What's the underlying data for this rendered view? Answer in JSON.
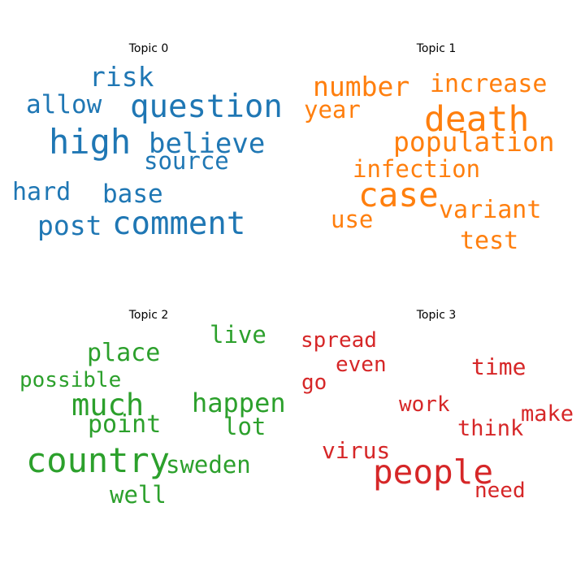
{
  "chart_data": [
    {
      "type": "wordcloud",
      "title": "Topic 0",
      "color": "#1f77b4",
      "words": [
        {
          "text": "high",
          "weight": 1.0
        },
        {
          "text": "question",
          "weight": 0.93
        },
        {
          "text": "comment",
          "weight": 0.93
        },
        {
          "text": "believe",
          "weight": 0.81
        },
        {
          "text": "risk",
          "weight": 0.8
        },
        {
          "text": "post",
          "weight": 0.8
        },
        {
          "text": "base",
          "weight": 0.74
        },
        {
          "text": "allow",
          "weight": 0.74
        },
        {
          "text": "hard",
          "weight": 0.72
        },
        {
          "text": "source",
          "weight": 0.7
        }
      ]
    },
    {
      "type": "wordcloud",
      "title": "Topic 1",
      "color": "#ff7f0e",
      "words": [
        {
          "text": "death",
          "weight": 1.0
        },
        {
          "text": "case",
          "weight": 0.98
        },
        {
          "text": "population",
          "weight": 0.8
        },
        {
          "text": "number",
          "weight": 0.8
        },
        {
          "text": "increase",
          "weight": 0.73
        },
        {
          "text": "test",
          "weight": 0.73
        },
        {
          "text": "variant",
          "weight": 0.72
        },
        {
          "text": "year",
          "weight": 0.7
        },
        {
          "text": "use",
          "weight": 0.7
        },
        {
          "text": "infection",
          "weight": 0.7
        }
      ]
    },
    {
      "type": "wordcloud",
      "title": "Topic 2",
      "color": "#2ca02c",
      "words": [
        {
          "text": "country",
          "weight": 1.0
        },
        {
          "text": "much",
          "weight": 0.88
        },
        {
          "text": "happen",
          "weight": 0.77
        },
        {
          "text": "point",
          "weight": 0.72
        },
        {
          "text": "place",
          "weight": 0.72
        },
        {
          "text": "sweden",
          "weight": 0.7
        },
        {
          "text": "well",
          "weight": 0.7
        },
        {
          "text": "live",
          "weight": 0.7
        },
        {
          "text": "lot",
          "weight": 0.7
        },
        {
          "text": "possible",
          "weight": 0.62
        }
      ]
    },
    {
      "type": "wordcloud",
      "title": "Topic 3",
      "color": "#d62728",
      "words": [
        {
          "text": "people",
          "weight": 1.0
        },
        {
          "text": "virus",
          "weight": 0.66
        },
        {
          "text": "time",
          "weight": 0.66
        },
        {
          "text": "think",
          "weight": 0.66
        },
        {
          "text": "make",
          "weight": 0.64
        },
        {
          "text": "need",
          "weight": 0.62
        },
        {
          "text": "work",
          "weight": 0.62
        },
        {
          "text": "spread",
          "weight": 0.62
        },
        {
          "text": "even",
          "weight": 0.62
        },
        {
          "text": "go",
          "weight": 0.62
        }
      ]
    }
  ]
}
